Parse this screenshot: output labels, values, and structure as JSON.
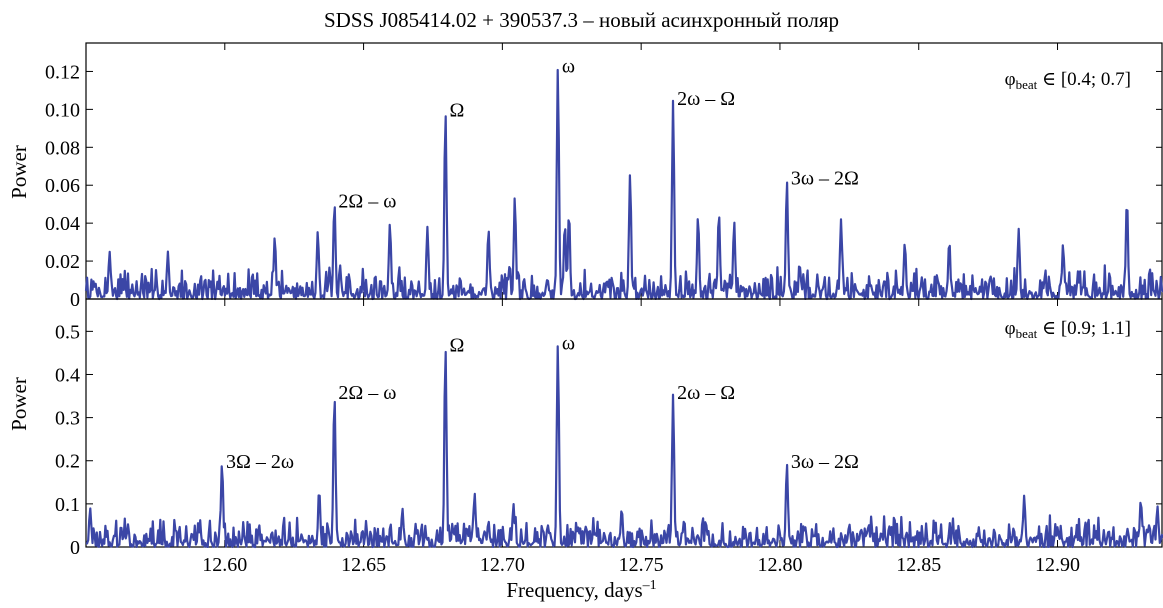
{
  "figure": {
    "title": "SDSS J085414.02 + 390537.3 – новый асинхронный поляр",
    "xlabel_main": "Frequency, days",
    "xlabel_sup": "–1"
  },
  "chart_data": [
    {
      "type": "line",
      "panel": "top",
      "ylabel": "Power",
      "xlim": [
        12.55,
        12.938
      ],
      "ylim": [
        0,
        0.135
      ],
      "x_ticks": [
        12.6,
        12.65,
        12.7,
        12.75,
        12.8,
        12.85,
        12.9
      ],
      "y_ticks": [
        0,
        0.02,
        0.04,
        0.06,
        0.08,
        0.1,
        0.12
      ],
      "y_tick_labels": [
        "0",
        "0.02",
        "0.04",
        "0.06",
        "0.08",
        "0.10",
        "0.12"
      ],
      "legend_text": {
        "prefix": "φ",
        "sub": "beat",
        "range": " ∈ [0.4; 0.7]"
      },
      "color": "#3b46a6",
      "noise_level": 0.009,
      "seed": 7,
      "peaks": [
        {
          "x": 12.6395,
          "y": 0.051,
          "label": "2Ω – ω",
          "label_side": "right"
        },
        {
          "x": 12.6795,
          "y": 0.099,
          "label": "Ω",
          "label_side": "right"
        },
        {
          "x": 12.72,
          "y": 0.122,
          "label": "ω",
          "label_side": "right"
        },
        {
          "x": 12.7615,
          "y": 0.105,
          "label": "2ω – Ω",
          "label_side": "right"
        },
        {
          "x": 12.8025,
          "y": 0.063,
          "label": "3ω – 2Ω",
          "label_side": "right"
        },
        {
          "x": 12.5585,
          "y": 0.025
        },
        {
          "x": 12.5795,
          "y": 0.025
        },
        {
          "x": 12.618,
          "y": 0.033
        },
        {
          "x": 12.6335,
          "y": 0.036
        },
        {
          "x": 12.6595,
          "y": 0.04
        },
        {
          "x": 12.673,
          "y": 0.038
        },
        {
          "x": 12.695,
          "y": 0.037
        },
        {
          "x": 12.7045,
          "y": 0.054
        },
        {
          "x": 12.7225,
          "y": 0.04
        },
        {
          "x": 12.724,
          "y": 0.046
        },
        {
          "x": 12.746,
          "y": 0.066
        },
        {
          "x": 12.7705,
          "y": 0.044
        },
        {
          "x": 12.778,
          "y": 0.046
        },
        {
          "x": 12.7835,
          "y": 0.041
        },
        {
          "x": 12.822,
          "y": 0.042
        },
        {
          "x": 12.845,
          "y": 0.03
        },
        {
          "x": 12.861,
          "y": 0.031
        },
        {
          "x": 12.886,
          "y": 0.037
        },
        {
          "x": 12.902,
          "y": 0.029
        },
        {
          "x": 12.925,
          "y": 0.053
        }
      ]
    },
    {
      "type": "line",
      "panel": "bottom",
      "ylabel": "Power",
      "xlim": [
        12.55,
        12.938
      ],
      "ylim": [
        0,
        0.575
      ],
      "x_ticks": [
        12.6,
        12.65,
        12.7,
        12.75,
        12.8,
        12.85,
        12.9
      ],
      "x_tick_labels": [
        "12.60",
        "12.65",
        "12.70",
        "12.75",
        "12.80",
        "12.85",
        "12.90"
      ],
      "y_ticks": [
        0,
        0.1,
        0.2,
        0.3,
        0.4,
        0.5
      ],
      "y_tick_labels": [
        "0",
        "0.1",
        "0.2",
        "0.3",
        "0.4",
        "0.5"
      ],
      "legend_text": {
        "prefix": "φ",
        "sub": "beat",
        "range": " ∈ [0.9; 1.1]"
      },
      "color": "#3b46a6",
      "noise_level": 0.035,
      "seed": 13,
      "peaks": [
        {
          "x": 12.599,
          "y": 0.195,
          "label": "3Ω – 2ω",
          "label_side": "right"
        },
        {
          "x": 12.6395,
          "y": 0.355,
          "label": "2Ω – ω",
          "label_side": "right"
        },
        {
          "x": 12.6795,
          "y": 0.465,
          "label": "Ω",
          "label_side": "right"
        },
        {
          "x": 12.72,
          "y": 0.47,
          "label": "ω",
          "label_side": "right"
        },
        {
          "x": 12.7615,
          "y": 0.355,
          "label": "2ω – Ω",
          "label_side": "right"
        },
        {
          "x": 12.8025,
          "y": 0.195,
          "label": "3ω – 2Ω",
          "label_side": "right"
        },
        {
          "x": 12.5515,
          "y": 0.09
        },
        {
          "x": 12.634,
          "y": 0.135
        },
        {
          "x": 12.69,
          "y": 0.125
        },
        {
          "x": 12.664,
          "y": 0.09
        },
        {
          "x": 12.704,
          "y": 0.1
        },
        {
          "x": 12.743,
          "y": 0.09
        },
        {
          "x": 12.888,
          "y": 0.12
        },
        {
          "x": 12.93,
          "y": 0.11
        },
        {
          "x": 12.936,
          "y": 0.095
        }
      ]
    }
  ]
}
